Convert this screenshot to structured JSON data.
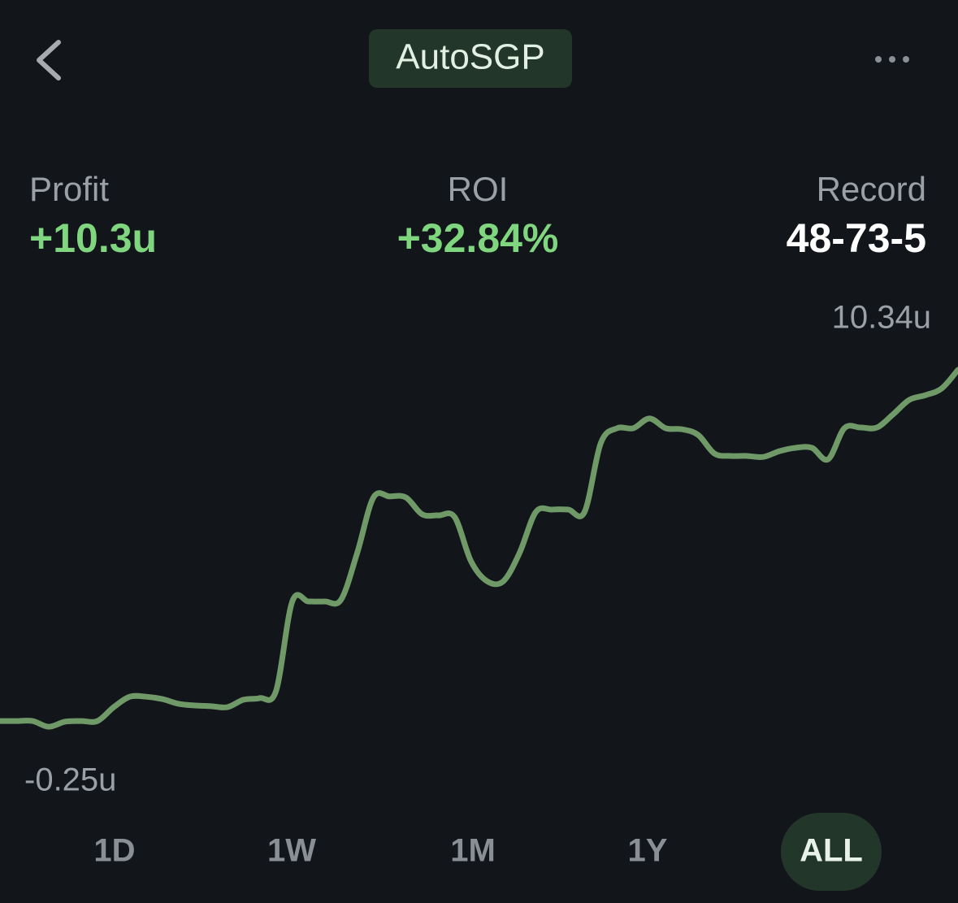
{
  "header": {
    "title": "AutoSGP"
  },
  "stats": [
    {
      "label": "Profit",
      "value": "+10.3u"
    },
    {
      "label": "ROI",
      "value": "+32.84%"
    },
    {
      "label": "Record",
      "value": "48-73-5"
    }
  ],
  "chart_data": {
    "type": "line",
    "color": "#6f9a68",
    "ylim": [
      -0.25,
      10.34
    ],
    "yticks": [
      {
        "value": 10.34,
        "label": "10.34u"
      },
      {
        "value": -0.25,
        "label": "-0.25u"
      }
    ],
    "values": [
      -0.06,
      -0.06,
      -0.06,
      -0.23,
      -0.08,
      -0.06,
      -0.06,
      0.35,
      0.66,
      0.66,
      0.59,
      0.45,
      0.4,
      0.38,
      0.35,
      0.57,
      0.62,
      0.83,
      3.48,
      3.48,
      3.48,
      3.53,
      4.92,
      6.56,
      6.59,
      6.56,
      6.06,
      6.03,
      5.98,
      4.68,
      4.08,
      4.08,
      4.92,
      6.13,
      6.2,
      6.2,
      6.13,
      8.17,
      8.61,
      8.61,
      8.9,
      8.61,
      8.58,
      8.41,
      7.86,
      7.79,
      7.79,
      7.76,
      7.93,
      8.03,
      8.03,
      7.69,
      8.61,
      8.63,
      8.63,
      9.02,
      9.45,
      9.59,
      9.79,
      10.34
    ]
  },
  "tabs": {
    "items": [
      "1D",
      "1W",
      "1M",
      "1Y",
      "ALL"
    ],
    "selected": 4
  }
}
